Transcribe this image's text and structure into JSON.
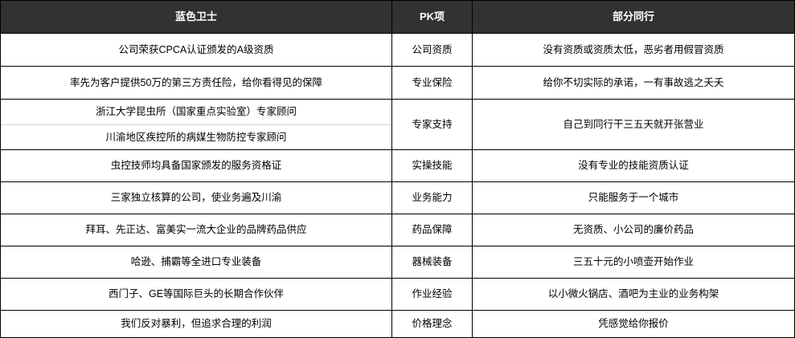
{
  "table": {
    "headers": {
      "us": "蓝色卫士",
      "item": "PK项",
      "them": "部分同行"
    },
    "rows": [
      {
        "us": "公司荣获CPCA认证颁发的A级资质",
        "item": "公司资质",
        "them": "没有资质或资质太低，恶劣者用假冒资质"
      },
      {
        "us": "率先为客户提供50万的第三方责任险，给你看得见的保障",
        "item": "专业保险",
        "them": "给你不切实际的承诺，一有事故逃之夭夭"
      },
      {
        "us_lines": [
          "浙江大学昆虫所（国家重点实验室）专家顾问",
          "川渝地区疾控所的病媒生物防控专家顾问"
        ],
        "item": "专家支持",
        "them": "自己到同行干三五天就开张营业"
      },
      {
        "us": "虫控技师均具备国家颁发的服务资格证",
        "item": "实操技能",
        "them": "没有专业的技能资质认证"
      },
      {
        "us": "三家独立核算的公司，使业务遍及川渝",
        "item": "业务能力",
        "them": "只能服务于一个城市"
      },
      {
        "us": "拜耳、先正达、富美实一流大企业的品牌药品供应",
        "item": "药品保障",
        "them": "无资质、小公司的廉价药品"
      },
      {
        "us": "哈逊、捕霸等全进口专业装备",
        "item": "器械装备",
        "them": "三五十元的小喷壶开始作业"
      },
      {
        "us": "西门子、GE等国际巨头的长期合作伙伴",
        "item": "作业经验",
        "them": "以小微火锅店、酒吧为主业的业务构架"
      },
      {
        "us": "我们反对暴利，但追求合理的利润",
        "item": "价格理念",
        "them": "凭感觉给你报价"
      }
    ],
    "colors": {
      "header_bg": "#323232",
      "header_text": "#ffffff",
      "border": "#000000",
      "sub_divider": "#d4d4d4",
      "body_text": "#000000"
    }
  }
}
